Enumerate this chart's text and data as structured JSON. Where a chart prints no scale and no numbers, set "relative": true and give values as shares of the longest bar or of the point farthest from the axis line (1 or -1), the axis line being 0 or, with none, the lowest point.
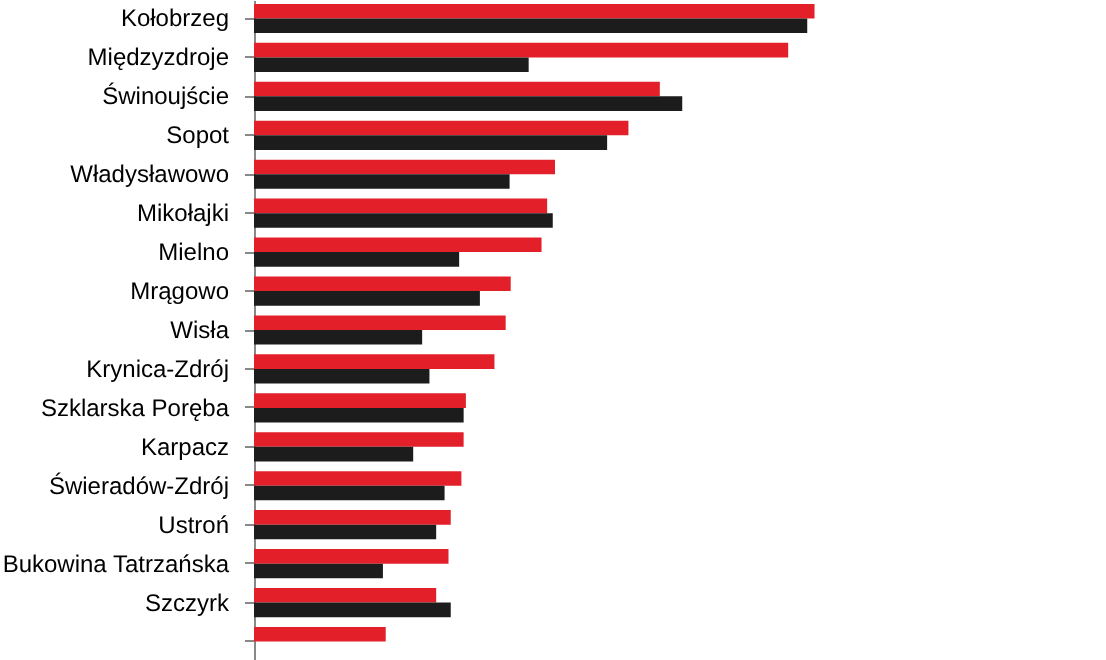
{
  "chart_data": {
    "type": "bar",
    "orientation": "horizontal",
    "relative": true,
    "categories": [
      "Kołobrzeg",
      "Międzyzdroje",
      "Świnoujście",
      "Sopot",
      "Władysławowo",
      "Mikołajki",
      "Mielno",
      "Mrągowo",
      "Wisła",
      "Krynica-Zdrój",
      "Szklarska Poręba",
      "Karpacz",
      "Świeradów-Zdrój",
      "Ustroń",
      "Bukowina Tatrzańska",
      "Szczyrk",
      null
    ],
    "series": [
      {
        "color": "#e3202a",
        "values": [
          1.0,
          0.953,
          0.724,
          0.668,
          0.537,
          0.523,
          0.513,
          0.458,
          0.449,
          0.429,
          0.378,
          0.374,
          0.37,
          0.351,
          0.347,
          0.325,
          0.235
        ]
      },
      {
        "color": "#1c1c1c",
        "values": [
          0.987,
          0.49,
          0.764,
          0.63,
          0.456,
          0.533,
          0.366,
          0.403,
          0.3,
          0.313,
          0.374,
          0.284,
          0.34,
          0.325,
          0.23,
          0.351,
          null
        ]
      }
    ]
  }
}
